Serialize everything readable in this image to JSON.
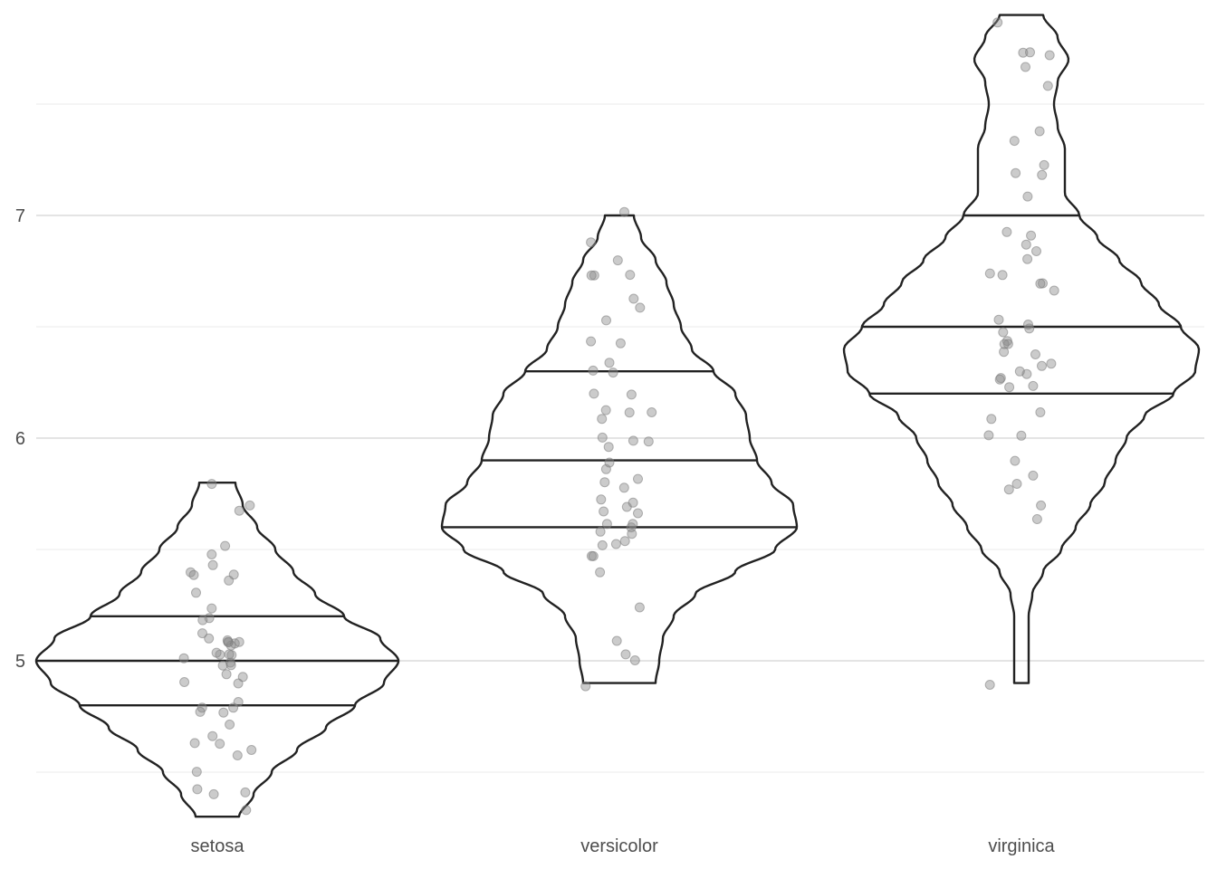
{
  "chart_data": {
    "type": "violin",
    "categories": [
      "setosa",
      "versicolor",
      "virginica"
    ],
    "ylim": [
      4.3,
      7.9
    ],
    "y_ticks": [
      5,
      6,
      7
    ],
    "y_tick_labels": [
      "5",
      "6",
      "7"
    ],
    "grid": true,
    "violins": [
      {
        "category": "setosa",
        "min": 4.3,
        "max": 5.8,
        "quantiles": [
          4.8,
          5.0,
          5.2
        ],
        "density_profile": [
          [
            4.3,
            0.12
          ],
          [
            4.4,
            0.2
          ],
          [
            4.5,
            0.3
          ],
          [
            4.6,
            0.44
          ],
          [
            4.7,
            0.6
          ],
          [
            4.8,
            0.76
          ],
          [
            4.9,
            0.92
          ],
          [
            5.0,
            1.0
          ],
          [
            5.1,
            0.9
          ],
          [
            5.2,
            0.7
          ],
          [
            5.3,
            0.54
          ],
          [
            5.4,
            0.42
          ],
          [
            5.5,
            0.32
          ],
          [
            5.6,
            0.22
          ],
          [
            5.7,
            0.14
          ],
          [
            5.8,
            0.1
          ]
        ],
        "points": [
          5.1,
          4.9,
          4.7,
          4.6,
          5.0,
          5.4,
          4.6,
          5.0,
          4.4,
          4.9,
          5.4,
          4.8,
          4.8,
          4.3,
          5.8,
          5.7,
          5.4,
          5.1,
          5.7,
          5.1,
          5.4,
          5.1,
          4.6,
          5.1,
          4.8,
          5.0,
          5.0,
          5.2,
          5.2,
          4.7,
          4.8,
          5.4,
          5.2,
          5.5,
          4.9,
          5.0,
          5.5,
          4.9,
          4.4,
          5.1,
          5.0,
          4.5,
          4.4,
          5.0,
          5.1,
          4.8,
          5.1,
          4.6,
          5.3,
          5.0
        ]
      },
      {
        "category": "versicolor",
        "min": 4.9,
        "max": 7.0,
        "quantiles": [
          5.6,
          5.9,
          6.3
        ],
        "density_profile": [
          [
            4.9,
            0.2
          ],
          [
            5.0,
            0.22
          ],
          [
            5.1,
            0.24
          ],
          [
            5.2,
            0.3
          ],
          [
            5.3,
            0.42
          ],
          [
            5.4,
            0.64
          ],
          [
            5.5,
            0.86
          ],
          [
            5.6,
            0.98
          ],
          [
            5.7,
            0.96
          ],
          [
            5.8,
            0.84
          ],
          [
            5.9,
            0.76
          ],
          [
            6.0,
            0.72
          ],
          [
            6.1,
            0.7
          ],
          [
            6.2,
            0.64
          ],
          [
            6.3,
            0.52
          ],
          [
            6.4,
            0.4
          ],
          [
            6.5,
            0.34
          ],
          [
            6.6,
            0.3
          ],
          [
            6.7,
            0.26
          ],
          [
            6.8,
            0.2
          ],
          [
            6.9,
            0.12
          ],
          [
            7.0,
            0.08
          ]
        ],
        "points": [
          7.0,
          6.4,
          6.9,
          5.5,
          6.5,
          5.7,
          6.3,
          4.9,
          6.6,
          5.2,
          5.0,
          5.9,
          6.0,
          6.1,
          5.6,
          6.7,
          5.6,
          5.8,
          6.2,
          5.6,
          5.9,
          6.1,
          6.3,
          6.1,
          6.4,
          6.6,
          6.8,
          6.7,
          6.0,
          5.7,
          5.5,
          5.5,
          5.8,
          6.0,
          5.4,
          6.0,
          6.7,
          6.3,
          5.6,
          5.5,
          5.5,
          6.1,
          5.8,
          5.0,
          5.6,
          5.7,
          5.7,
          6.2,
          5.1,
          5.7
        ]
      },
      {
        "category": "virginica",
        "min": 4.9,
        "max": 7.9,
        "quantiles": [
          6.2,
          6.5,
          7.0
        ],
        "density_profile": [
          [
            4.9,
            0.04
          ],
          [
            5.0,
            0.04
          ],
          [
            5.1,
            0.04
          ],
          [
            5.2,
            0.04
          ],
          [
            5.3,
            0.06
          ],
          [
            5.4,
            0.12
          ],
          [
            5.5,
            0.22
          ],
          [
            5.6,
            0.3
          ],
          [
            5.7,
            0.38
          ],
          [
            5.8,
            0.46
          ],
          [
            5.9,
            0.52
          ],
          [
            6.0,
            0.58
          ],
          [
            6.1,
            0.68
          ],
          [
            6.2,
            0.84
          ],
          [
            6.3,
            0.96
          ],
          [
            6.4,
            0.98
          ],
          [
            6.5,
            0.88
          ],
          [
            6.6,
            0.76
          ],
          [
            6.7,
            0.66
          ],
          [
            6.8,
            0.54
          ],
          [
            6.9,
            0.42
          ],
          [
            7.0,
            0.32
          ],
          [
            7.1,
            0.24
          ],
          [
            7.2,
            0.24
          ],
          [
            7.3,
            0.24
          ],
          [
            7.4,
            0.2
          ],
          [
            7.5,
            0.18
          ],
          [
            7.6,
            0.2
          ],
          [
            7.7,
            0.26
          ],
          [
            7.8,
            0.2
          ],
          [
            7.9,
            0.12
          ]
        ],
        "points": [
          6.3,
          5.8,
          7.1,
          6.3,
          6.5,
          7.6,
          4.9,
          7.3,
          6.7,
          7.2,
          6.5,
          6.4,
          6.8,
          5.7,
          5.8,
          6.4,
          6.5,
          7.7,
          7.7,
          6.0,
          6.9,
          5.6,
          7.7,
          6.3,
          6.7,
          7.2,
          6.2,
          6.1,
          6.4,
          7.2,
          7.4,
          7.9,
          6.4,
          6.3,
          6.1,
          7.7,
          6.3,
          6.4,
          6.0,
          6.9,
          6.7,
          6.9,
          5.8,
          6.8,
          6.7,
          6.7,
          6.3,
          6.5,
          6.2,
          5.9
        ]
      }
    ]
  }
}
